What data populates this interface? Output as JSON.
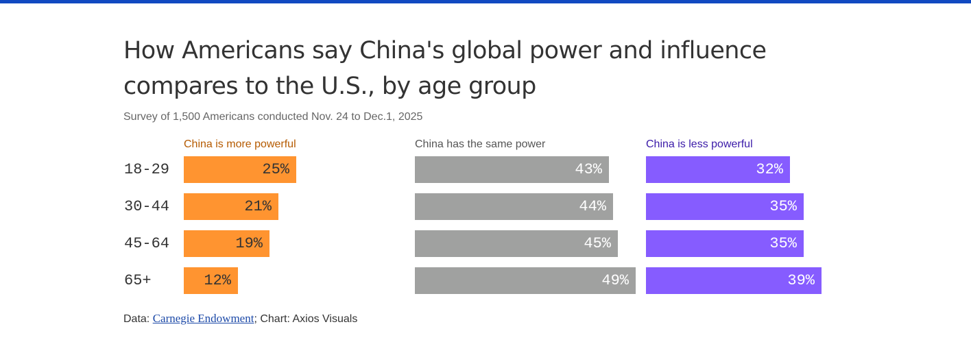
{
  "header": {
    "title": "How Americans say China's global power and influence compares to the U.S., by age group",
    "subtitle": "Survey of 1,500 Americans conducted Nov. 24 to Dec.1, 2025"
  },
  "footer": {
    "prefix": "Data: ",
    "source_link": "Carnegie Endowment",
    "suffix": "; Chart: Axios Visuals"
  },
  "colors": {
    "top_bar": "#1149c1",
    "more_powerful": "#ff9430",
    "same_power": "#a0a1a0",
    "less_powerful": "#865cff",
    "more_label": "#b55a00",
    "same_label": "#555555",
    "less_label": "#3a1aa8"
  },
  "chart_data": {
    "type": "bar",
    "orientation": "horizontal",
    "title": "How Americans say China's global power and influence compares to the U.S., by age group",
    "subtitle": "Survey of 1,500 Americans conducted Nov. 24 to Dec.1, 2025",
    "categories": [
      "18-29",
      "30-44",
      "45-64",
      "65+"
    ],
    "unit": "%",
    "series": [
      {
        "name": "China is more powerful",
        "values": [
          25,
          21,
          19,
          12
        ]
      },
      {
        "name": "China has the same power",
        "values": [
          43,
          44,
          45,
          49
        ]
      },
      {
        "name": "China is less powerful",
        "values": [
          32,
          35,
          35,
          39
        ]
      }
    ],
    "xlabel": "",
    "ylabel": "",
    "grid": false,
    "legend": "column headers above each bar group"
  }
}
